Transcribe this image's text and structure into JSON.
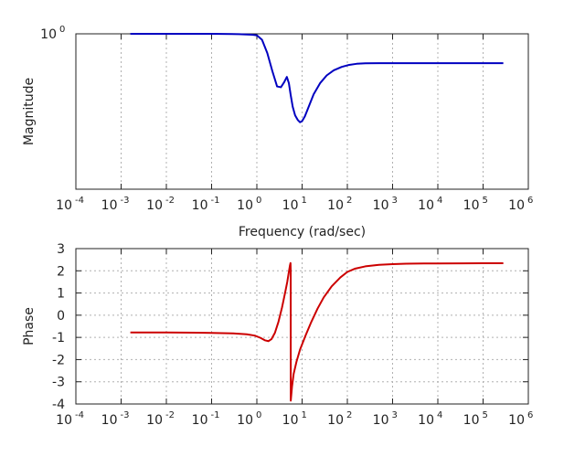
{
  "chart_data": [
    {
      "type": "line",
      "name": "magnitude-plot",
      "xscale": "log",
      "yscale": "log",
      "xlim": [
        0.0001,
        1000000
      ],
      "ylim": [
        0.2,
        1.0
      ],
      "grid": true,
      "xlabel": "Frequency (rad/sec)",
      "ylabel": "Magnitude",
      "x_ticks": [
        {
          "base": "10",
          "exp": "-4"
        },
        {
          "base": "10",
          "exp": "-3"
        },
        {
          "base": "10",
          "exp": "-2"
        },
        {
          "base": "10",
          "exp": "-1"
        },
        {
          "base": "10",
          "exp": "0"
        },
        {
          "base": "10",
          "exp": "1"
        },
        {
          "base": "10",
          "exp": "2"
        },
        {
          "base": "10",
          "exp": "3"
        },
        {
          "base": "10",
          "exp": "4"
        },
        {
          "base": "10",
          "exp": "5"
        },
        {
          "base": "10",
          "exp": "6"
        }
      ],
      "y_ticks": [
        {
          "base": "10",
          "exp": "0",
          "value": 1.0
        }
      ],
      "color": "#0000c0",
      "series": [
        {
          "x": [
            0.0016,
            0.01,
            0.1,
            0.4,
            0.8,
            1.0,
            1.3,
            1.7,
            2.2,
            2.8,
            3.4,
            4.0,
            4.6,
            5.1,
            5.6,
            6.2,
            7.0,
            8.0,
            9.0,
            10.0,
            11.5,
            14,
            18,
            25,
            35,
            50,
            75,
            110,
            160,
            250,
            500,
            1000,
            10000,
            100000,
            280000
          ],
          "y": [
            1.0,
            1.0,
            1.0,
            0.997,
            0.99,
            0.985,
            0.94,
            0.82,
            0.68,
            0.58,
            0.575,
            0.605,
            0.64,
            0.6,
            0.53,
            0.47,
            0.43,
            0.41,
            0.4,
            0.405,
            0.425,
            0.47,
            0.535,
            0.6,
            0.65,
            0.685,
            0.71,
            0.725,
            0.733,
            0.737,
            0.738,
            0.738,
            0.738,
            0.738,
            0.738
          ]
        }
      ]
    },
    {
      "type": "line",
      "name": "phase-plot",
      "xscale": "log",
      "xlim": [
        0.0001,
        1000000
      ],
      "ylim": [
        -4,
        3
      ],
      "grid": true,
      "xlabel": "",
      "ylabel": "Phase",
      "x_ticks": [
        {
          "base": "10",
          "exp": "-4"
        },
        {
          "base": "10",
          "exp": "-3"
        },
        {
          "base": "10",
          "exp": "-2"
        },
        {
          "base": "10",
          "exp": "-1"
        },
        {
          "base": "10",
          "exp": "0"
        },
        {
          "base": "10",
          "exp": "1"
        },
        {
          "base": "10",
          "exp": "2"
        },
        {
          "base": "10",
          "exp": "3"
        },
        {
          "base": "10",
          "exp": "4"
        },
        {
          "base": "10",
          "exp": "5"
        },
        {
          "base": "10",
          "exp": "6"
        }
      ],
      "y_ticks": [
        "3",
        "2",
        "1",
        "0",
        "-1",
        "-2",
        "-3",
        "-4"
      ],
      "color": "#cc0000",
      "series": [
        {
          "x": [
            0.0016,
            0.01,
            0.05,
            0.1,
            0.3,
            0.6,
            0.9,
            1.2,
            1.5,
            1.8,
            2.1,
            2.5,
            3.0,
            3.6,
            4.2,
            4.7,
            5.1,
            5.4,
            5.55,
            5.6,
            5.62,
            5.7,
            6.0,
            6.5,
            7.5,
            9,
            12,
            16,
            22,
            30,
            45,
            70,
            100,
            150,
            250,
            500,
            1000,
            2000,
            5000,
            10000,
            100000,
            280000
          ],
          "y": [
            -0.78,
            -0.78,
            -0.79,
            -0.8,
            -0.82,
            -0.86,
            -0.92,
            -1.02,
            -1.13,
            -1.17,
            -1.08,
            -0.8,
            -0.3,
            0.35,
            1.0,
            1.5,
            1.95,
            2.25,
            2.35,
            2.0,
            -3.85,
            -3.7,
            -3.2,
            -2.65,
            -2.1,
            -1.55,
            -0.9,
            -0.3,
            0.3,
            0.8,
            1.3,
            1.7,
            1.95,
            2.1,
            2.2,
            2.27,
            2.3,
            2.32,
            2.33,
            2.33,
            2.34,
            2.34
          ]
        }
      ]
    }
  ]
}
